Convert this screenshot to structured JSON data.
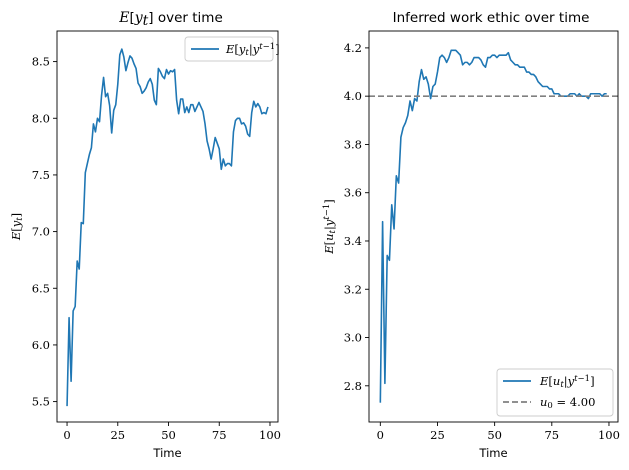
{
  "chart_data": [
    {
      "type": "line",
      "title": "E[y_t] over time",
      "xlabel": "Time",
      "ylabel": "E[y_t]",
      "xlim": [
        -4.95,
        103.95
      ],
      "ylim": [
        5.32,
        8.77
      ],
      "xticks": [
        0,
        25,
        50,
        75,
        100
      ],
      "yticks": [
        5.5,
        6.0,
        6.5,
        7.0,
        7.5,
        8.0,
        8.5
      ],
      "ytick_labels": [
        "5.5",
        "6.0",
        "6.5",
        "7.0",
        "7.5",
        "8.0",
        "8.5"
      ],
      "grid": false,
      "legend_position": "top-right",
      "series": [
        {
          "name": "E[y_t|y^{t-1}]",
          "color": "#1f77b4",
          "x": [
            0,
            1,
            2,
            3,
            4,
            5,
            6,
            7,
            8,
            9,
            10,
            11,
            12,
            13,
            14,
            15,
            16,
            17,
            18,
            19,
            20,
            21,
            22,
            23,
            24,
            25,
            26,
            27,
            28,
            29,
            30,
            31,
            32,
            33,
            34,
            35,
            36,
            37,
            38,
            39,
            40,
            41,
            42,
            43,
            44,
            45,
            46,
            47,
            48,
            49,
            50,
            51,
            52,
            53,
            54,
            55,
            56,
            57,
            58,
            59,
            60,
            61,
            62,
            63,
            64,
            65,
            66,
            67,
            68,
            69,
            70,
            71,
            72,
            73,
            74,
            75,
            76,
            77,
            78,
            79,
            80,
            81,
            82,
            83,
            84,
            85,
            86,
            87,
            88,
            89,
            90,
            91,
            92,
            93,
            94,
            95,
            96,
            97,
            98,
            99
          ],
          "y": [
            5.46,
            6.24,
            5.68,
            6.3,
            6.34,
            6.74,
            6.67,
            7.08,
            7.07,
            7.52,
            7.6,
            7.68,
            7.74,
            7.95,
            7.88,
            8.0,
            7.97,
            8.2,
            8.36,
            8.19,
            8.22,
            8.11,
            7.87,
            8.07,
            8.12,
            8.3,
            8.56,
            8.61,
            8.54,
            8.42,
            8.49,
            8.55,
            8.53,
            8.48,
            8.44,
            8.31,
            8.28,
            8.22,
            8.24,
            8.27,
            8.32,
            8.35,
            8.3,
            8.16,
            8.12,
            8.44,
            8.41,
            8.37,
            8.35,
            8.43,
            8.39,
            8.42,
            8.41,
            8.43,
            8.16,
            8.04,
            8.17,
            8.17,
            8.05,
            8.1,
            8.05,
            8.12,
            8.12,
            8.06,
            8.1,
            8.14,
            8.1,
            8.06,
            7.95,
            7.8,
            7.73,
            7.64,
            7.73,
            7.83,
            7.78,
            7.73,
            7.55,
            7.64,
            7.58,
            7.6,
            7.6,
            7.58,
            7.88,
            7.98,
            8.0,
            8.0,
            7.95,
            7.96,
            7.93,
            7.86,
            7.84,
            8.05,
            8.15,
            8.1,
            8.13,
            8.1,
            8.04,
            8.05,
            8.04,
            8.1
          ]
        }
      ]
    },
    {
      "type": "line",
      "title": "Inferred work ethic over time",
      "xlabel": "Time",
      "ylabel": "E[u_t|y^{t-1}]",
      "xlim": [
        -4.95,
        103.95
      ],
      "ylim": [
        2.65,
        4.27
      ],
      "xticks": [
        0,
        25,
        50,
        75,
        100
      ],
      "yticks": [
        2.8,
        3.0,
        3.2,
        3.4,
        3.6,
        3.8,
        4.0,
        4.2
      ],
      "ytick_labels": [
        "2.8",
        "3.0",
        "3.2",
        "3.4",
        "3.6",
        "3.8",
        "4.0",
        "4.2"
      ],
      "grid": false,
      "legend_position": "bottom-right",
      "series": [
        {
          "name": "E[u_t|y^{t-1}]",
          "color": "#1f77b4",
          "x": [
            0,
            1,
            2,
            3,
            4,
            5,
            6,
            7,
            8,
            9,
            10,
            11,
            12,
            13,
            14,
            15,
            16,
            17,
            18,
            19,
            20,
            21,
            22,
            23,
            24,
            25,
            26,
            27,
            28,
            29,
            30,
            31,
            32,
            33,
            34,
            35,
            36,
            37,
            38,
            39,
            40,
            41,
            42,
            43,
            44,
            45,
            46,
            47,
            48,
            49,
            50,
            51,
            52,
            53,
            54,
            55,
            56,
            57,
            58,
            59,
            60,
            61,
            62,
            63,
            64,
            65,
            66,
            67,
            68,
            69,
            70,
            71,
            72,
            73,
            74,
            75,
            76,
            77,
            78,
            79,
            80,
            81,
            82,
            83,
            84,
            85,
            86,
            87,
            88,
            89,
            90,
            91,
            92,
            93,
            94,
            95,
            96,
            97,
            98,
            99
          ],
          "y": [
            2.73,
            3.48,
            2.81,
            3.34,
            3.32,
            3.55,
            3.45,
            3.67,
            3.64,
            3.83,
            3.87,
            3.89,
            3.92,
            3.98,
            3.94,
            3.99,
            3.98,
            4.06,
            4.11,
            4.07,
            4.08,
            4.05,
            3.99,
            4.04,
            4.05,
            4.1,
            4.16,
            4.17,
            4.16,
            4.14,
            4.16,
            4.19,
            4.19,
            4.19,
            4.18,
            4.17,
            4.13,
            4.14,
            4.14,
            4.13,
            4.14,
            4.16,
            4.16,
            4.16,
            4.15,
            4.13,
            4.12,
            4.16,
            4.16,
            4.17,
            4.17,
            4.16,
            4.17,
            4.17,
            4.17,
            4.17,
            4.18,
            4.15,
            4.14,
            4.13,
            4.13,
            4.12,
            4.12,
            4.12,
            4.1,
            4.1,
            4.09,
            4.09,
            4.08,
            4.06,
            4.05,
            4.04,
            4.04,
            4.04,
            4.03,
            4.03,
            4.01,
            4.01,
            4.01,
            4.0,
            4.0,
            4.0,
            4.0,
            4.01,
            4.01,
            4.01,
            4.0,
            4.01,
            4.0,
            4.0,
            4.0,
            3.99,
            4.01,
            4.01,
            4.01,
            4.01,
            4.01,
            4.0,
            4.01,
            4.01
          ]
        },
        {
          "name": "u_0 = 4.00",
          "color": "#808080",
          "style": "dashed",
          "hline": 4.0
        }
      ]
    }
  ]
}
